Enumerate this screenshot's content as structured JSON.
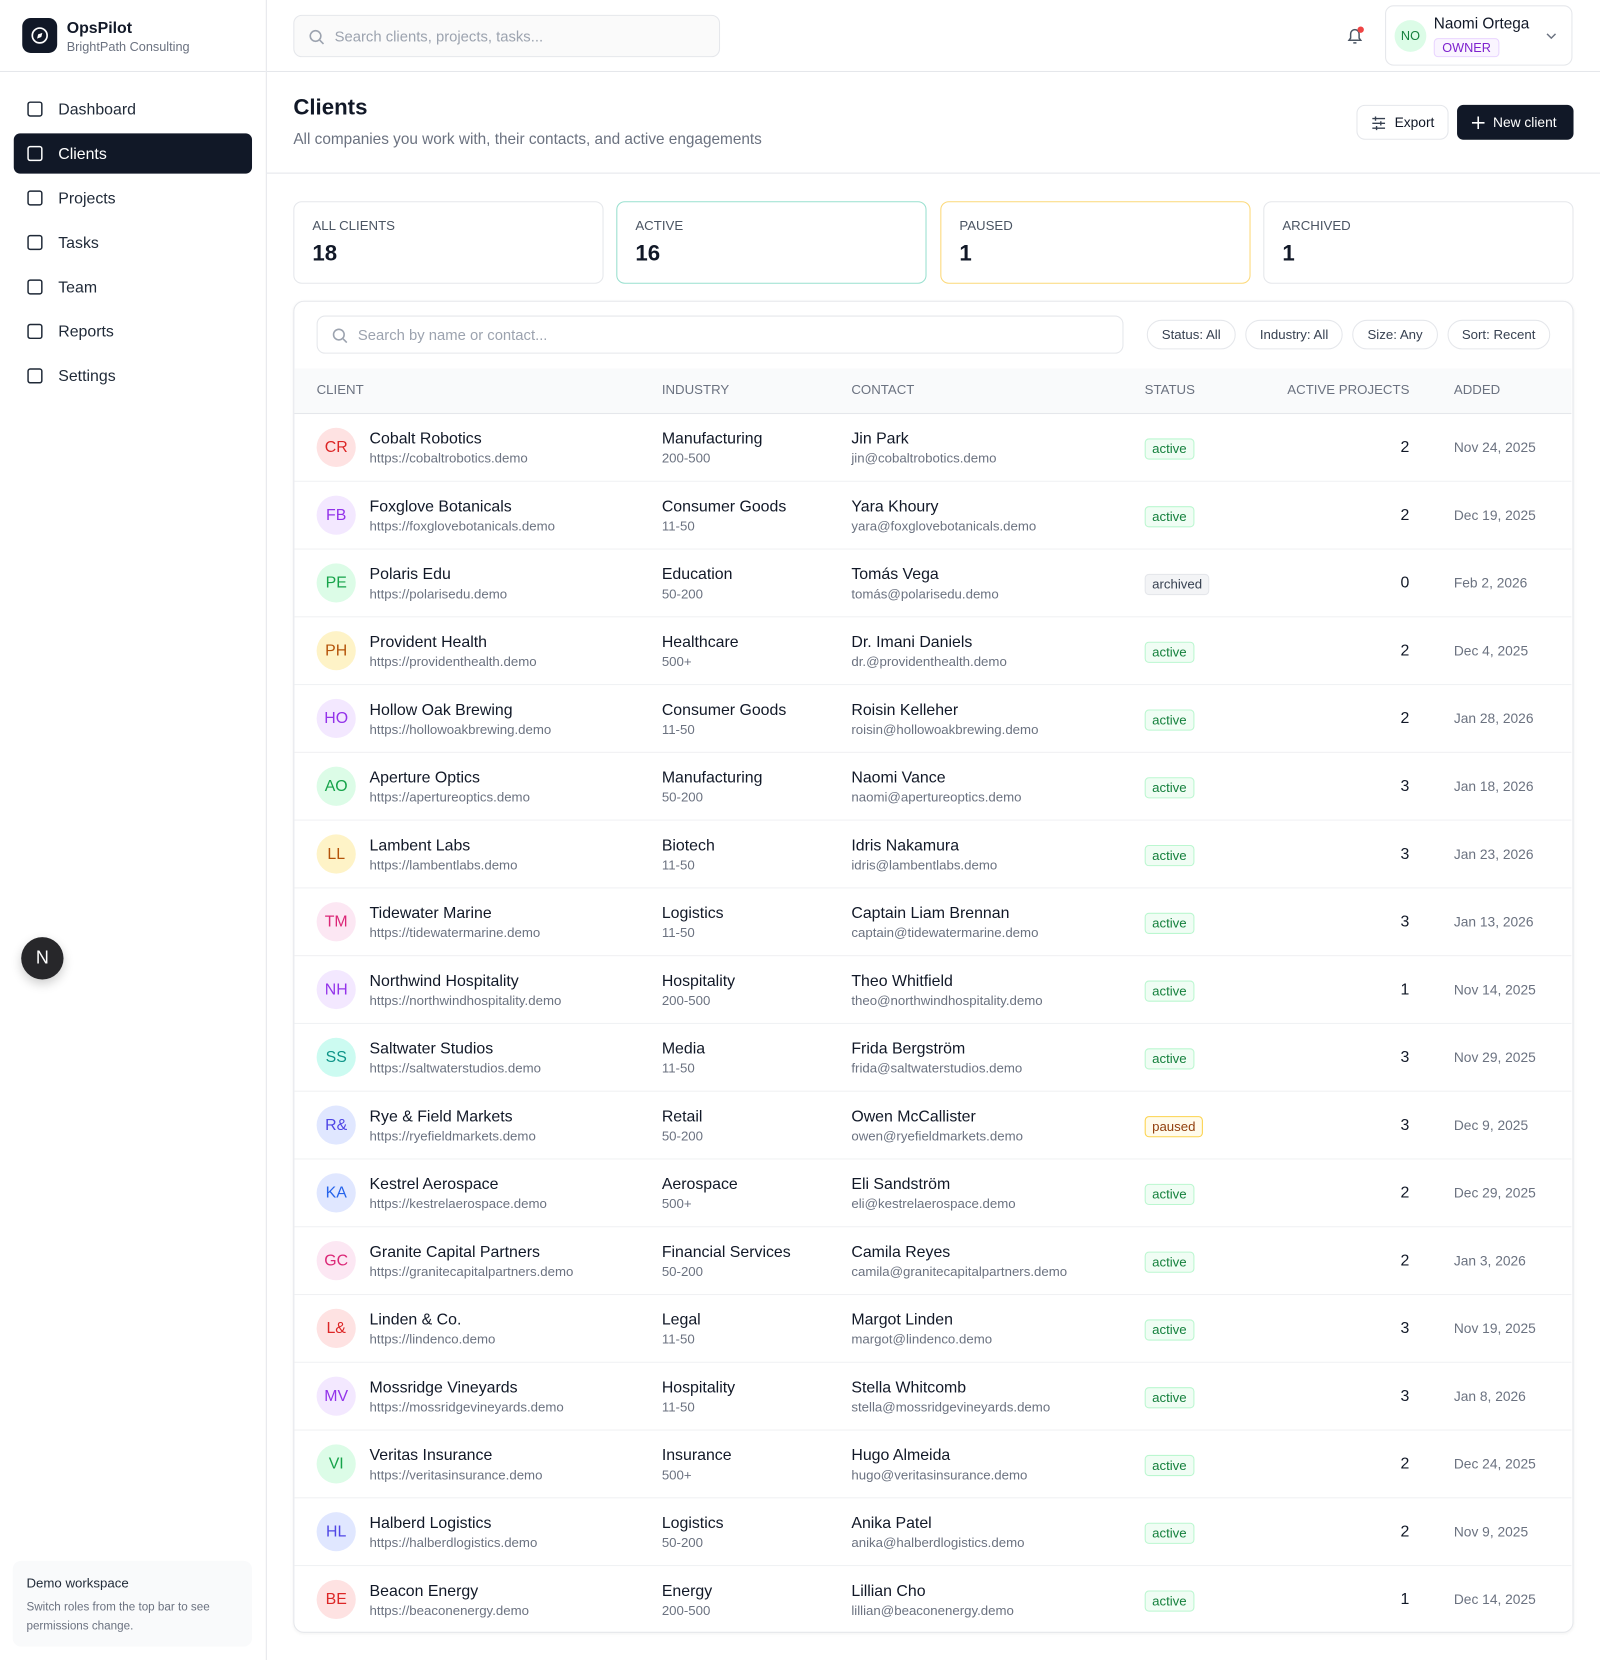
{
  "brand": {
    "name": "OpsPilot",
    "org": "BrightPath Consulting"
  },
  "nav": [
    "Dashboard",
    "Clients",
    "Projects",
    "Tasks",
    "Team",
    "Reports",
    "Settings"
  ],
  "nav_active": 1,
  "search_placeholder": "Search clients, projects, tasks...",
  "user": {
    "initials": "NO",
    "name": "Naomi Ortega",
    "role": "OWNER"
  },
  "floating_badge": "N",
  "workspace": {
    "title": "Demo workspace",
    "text": "Switch roles from the top bar to see permissions change."
  },
  "header": {
    "title": "Clients",
    "subtitle": "All companies you work with, their contacts, and active engagements",
    "export": "Export",
    "new": "New client"
  },
  "stats": [
    {
      "label": "ALL CLIENTS",
      "value": "18"
    },
    {
      "label": "ACTIVE",
      "value": "16"
    },
    {
      "label": "PAUSED",
      "value": "1"
    },
    {
      "label": "ARCHIVED",
      "value": "1"
    }
  ],
  "table": {
    "search_placeholder": "Search by name or contact...",
    "filters": [
      "Status: All",
      "Industry: All",
      "Size: Any",
      "Sort: Recent"
    ],
    "columns": [
      "CLIENT",
      "INDUSTRY",
      "CONTACT",
      "STATUS",
      "ACTIVE PROJECTS",
      "ADDED"
    ],
    "rows": [
      [
        "CR",
        "Cobalt Robotics",
        "https://cobaltrobotics.demo",
        "Manufacturing",
        "200-500",
        "Jin Park",
        "jin@cobaltrobotics.demo",
        "active",
        "2",
        "Nov 24, 2025"
      ],
      [
        "FB",
        "Foxglove Botanicals",
        "https://foxglovebotanicals.demo",
        "Consumer Goods",
        "11-50",
        "Yara Khoury",
        "yara@foxglovebotanicals.demo",
        "active",
        "2",
        "Dec 19, 2025"
      ],
      [
        "PE",
        "Polaris Edu",
        "https://polarisedu.demo",
        "Education",
        "50-200",
        "Tomás Vega",
        "tomás@polarisedu.demo",
        "archived",
        "0",
        "Feb 2, 2026"
      ],
      [
        "PH",
        "Provident Health",
        "https://providenthealth.demo",
        "Healthcare",
        "500+",
        "Dr. Imani Daniels",
        "dr.@providenthealth.demo",
        "active",
        "2",
        "Dec 4, 2025"
      ],
      [
        "HO",
        "Hollow Oak Brewing",
        "https://hollowoakbrewing.demo",
        "Consumer Goods",
        "11-50",
        "Roisin Kelleher",
        "roisin@hollowoakbrewing.demo",
        "active",
        "2",
        "Jan 28, 2026"
      ],
      [
        "AO",
        "Aperture Optics",
        "https://apertureoptics.demo",
        "Manufacturing",
        "50-200",
        "Naomi Vance",
        "naomi@apertureoptics.demo",
        "active",
        "3",
        "Jan 18, 2026"
      ],
      [
        "LL",
        "Lambent Labs",
        "https://lambentlabs.demo",
        "Biotech",
        "11-50",
        "Idris Nakamura",
        "idris@lambentlabs.demo",
        "active",
        "3",
        "Jan 23, 2026"
      ],
      [
        "TM",
        "Tidewater Marine",
        "https://tidewatermarine.demo",
        "Logistics",
        "11-50",
        "Captain Liam Brennan",
        "captain@tidewatermarine.demo",
        "active",
        "3",
        "Jan 13, 2026"
      ],
      [
        "NH",
        "Northwind Hospitality",
        "https://northwindhospitality.demo",
        "Hospitality",
        "200-500",
        "Theo Whitfield",
        "theo@northwindhospitality.demo",
        "active",
        "1",
        "Nov 14, 2025"
      ],
      [
        "SS",
        "Saltwater Studios",
        "https://saltwaterstudios.demo",
        "Media",
        "11-50",
        "Frida Bergström",
        "frida@saltwaterstudios.demo",
        "active",
        "3",
        "Nov 29, 2025"
      ],
      [
        "R&",
        "Rye & Field Markets",
        "https://ryefieldmarkets.demo",
        "Retail",
        "50-200",
        "Owen McCallister",
        "owen@ryefieldmarkets.demo",
        "paused",
        "3",
        "Dec 9, 2025"
      ],
      [
        "KA",
        "Kestrel Aerospace",
        "https://kestrelaerospace.demo",
        "Aerospace",
        "500+",
        "Eli Sandström",
        "eli@kestrelaerospace.demo",
        "active",
        "2",
        "Dec 29, 2025"
      ],
      [
        "GC",
        "Granite Capital Partners",
        "https://granitecapitalpartners.demo",
        "Financial Services",
        "50-200",
        "Camila Reyes",
        "camila@granitecapitalpartners.demo",
        "active",
        "2",
        "Jan 3, 2026"
      ],
      [
        "L&",
        "Linden & Co.",
        "https://lindenco.demo",
        "Legal",
        "11-50",
        "Margot Linden",
        "margot@lindenco.demo",
        "active",
        "3",
        "Nov 19, 2025"
      ],
      [
        "MV",
        "Mossridge Vineyards",
        "https://mossridgevineyards.demo",
        "Hospitality",
        "11-50",
        "Stella Whitcomb",
        "stella@mossridgevineyards.demo",
        "active",
        "3",
        "Jan 8, 2026"
      ],
      [
        "VI",
        "Veritas Insurance",
        "https://veritasinsurance.demo",
        "Insurance",
        "500+",
        "Hugo Almeida",
        "hugo@veritasinsurance.demo",
        "active",
        "2",
        "Dec 24, 2025"
      ],
      [
        "HL",
        "Halberd Logistics",
        "https://halberdlogistics.demo",
        "Logistics",
        "50-200",
        "Anika Patel",
        "anika@halberdlogistics.demo",
        "active",
        "2",
        "Nov 9, 2025"
      ],
      [
        "BE",
        "Beacon Energy",
        "https://beaconenergy.demo",
        "Energy",
        "200-500",
        "Lillian Cho",
        "lillian@beaconenergy.demo",
        "active",
        "1",
        "Dec 14, 2025"
      ]
    ]
  }
}
